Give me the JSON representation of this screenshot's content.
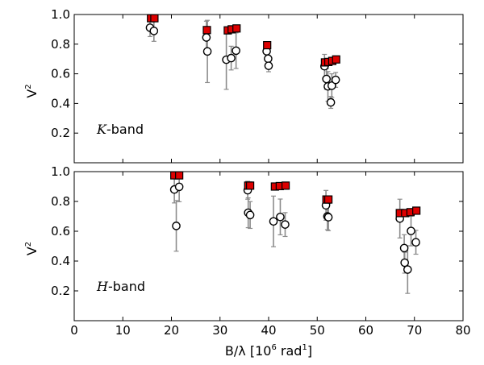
{
  "chart_data": [
    {
      "type": "scatter",
      "panel_label": "K-band",
      "panel_label_parts": {
        "italic": "K",
        "rest": "-band"
      },
      "xlabel": "",
      "ylabel_parts": {
        "base": "V",
        "sup": "2"
      },
      "xlim": [
        0,
        80
      ],
      "ylim": [
        0.0,
        1.0
      ],
      "yticks": [
        "0.2",
        "0.4",
        "0.6",
        "0.8",
        "1.0"
      ],
      "show_xticklabels": false,
      "grid": false,
      "series": [
        {
          "marker": "square",
          "color": "#dd0000",
          "points": [
            [
              15.8,
              0.975
            ],
            [
              16.5,
              0.975
            ],
            [
              27.3,
              0.895
            ],
            [
              31.6,
              0.893
            ],
            [
              32.4,
              0.9
            ],
            [
              33.4,
              0.906
            ],
            [
              39.7,
              0.793
            ],
            [
              51.6,
              0.677
            ],
            [
              52.3,
              0.68
            ],
            [
              53.1,
              0.687
            ],
            [
              53.9,
              0.697
            ]
          ]
        },
        {
          "marker": "circle",
          "color": "#ffffff",
          "points": [
            [
              15.6,
              0.911,
              0.06
            ],
            [
              16.4,
              0.889,
              0.07
            ],
            [
              27.2,
              0.845,
              0.11
            ],
            [
              27.4,
              0.751,
              0.21
            ],
            [
              31.3,
              0.695,
              0.2
            ],
            [
              32.3,
              0.706,
              0.08
            ],
            [
              33.3,
              0.756,
              0.12
            ],
            [
              39.6,
              0.752,
              0.05
            ],
            [
              39.9,
              0.702,
              0.06
            ],
            [
              40.0,
              0.654,
              0.04
            ],
            [
              51.5,
              0.651,
              0.08
            ],
            [
              51.9,
              0.565,
              0.07
            ],
            [
              52.2,
              0.515,
              0.1
            ],
            [
              52.8,
              0.407,
              0.04
            ],
            [
              53.0,
              0.52,
              0.08
            ],
            [
              53.8,
              0.559,
              0.05
            ]
          ]
        }
      ]
    },
    {
      "type": "scatter",
      "panel_label": "H-band",
      "panel_label_parts": {
        "italic": "H",
        "rest": "-band"
      },
      "xlabel_parts": {
        "before": "B/λ [10",
        "sup1": "6",
        "mid": " rad",
        "sup2": "1",
        "after": "]"
      },
      "ylabel_parts": {
        "base": "V",
        "sup": "2"
      },
      "xlim": [
        0,
        80
      ],
      "ylim": [
        0.0,
        1.0
      ],
      "xticks": [
        "0",
        "10",
        "20",
        "30",
        "40",
        "50",
        "60",
        "70",
        "80"
      ],
      "yticks": [
        "0.2",
        "0.4",
        "0.6",
        "0.8",
        "1.0"
      ],
      "show_xticklabels": true,
      "grid": false,
      "series": [
        {
          "marker": "square",
          "color": "#dd0000",
          "points": [
            [
              20.6,
              0.975
            ],
            [
              21.6,
              0.975
            ],
            [
              35.8,
              0.906
            ],
            [
              36.2,
              0.906
            ],
            [
              41.3,
              0.9
            ],
            [
              42.3,
              0.903
            ],
            [
              43.5,
              0.906
            ],
            [
              51.9,
              0.813
            ],
            [
              52.3,
              0.813
            ],
            [
              67.0,
              0.722
            ],
            [
              68.1,
              0.722
            ],
            [
              69.2,
              0.728
            ],
            [
              70.4,
              0.738
            ]
          ]
        },
        {
          "marker": "circle",
          "color": "#ffffff",
          "points": [
            [
              20.6,
              0.88,
              0.09
            ],
            [
              21.0,
              0.636,
              0.17
            ],
            [
              21.6,
              0.898,
              0.1
            ],
            [
              35.7,
              0.875,
              0.06
            ],
            [
              35.8,
              0.724,
              0.1
            ],
            [
              36.2,
              0.709,
              0.09
            ],
            [
              41.0,
              0.666,
              0.17
            ],
            [
              42.4,
              0.696,
              0.12
            ],
            [
              43.4,
              0.645,
              0.08
            ],
            [
              51.8,
              0.774,
              0.1
            ],
            [
              52.1,
              0.7,
              0.09
            ],
            [
              52.3,
              0.694,
              0.09
            ],
            [
              67.0,
              0.685,
              0.13
            ],
            [
              67.9,
              0.487,
              0.09
            ],
            [
              68.0,
              0.389,
              0.07
            ],
            [
              68.6,
              0.343,
              0.16
            ],
            [
              69.3,
              0.602,
              0.1
            ],
            [
              70.3,
              0.526,
              0.08
            ]
          ]
        }
      ]
    }
  ]
}
